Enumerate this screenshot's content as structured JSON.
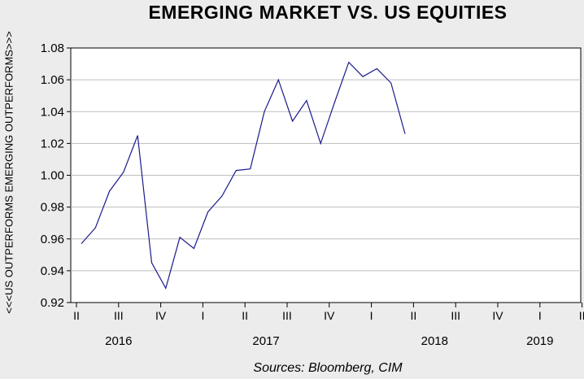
{
  "chart_data": {
    "type": "line",
    "title": "EMERGING MARKET VS. US EQUITIES",
    "ylabel": "<<<US OUTPERFORMS EMERGING OUTPERFORMS>>>",
    "xlabel": "",
    "source": "Sources:  Bloomberg, CIM",
    "ylim": [
      0.92,
      1.08
    ],
    "yticks": [
      "0.92",
      "0.94",
      "0.96",
      "0.98",
      "1.00",
      "1.02",
      "1.04",
      "1.06",
      "1.08"
    ],
    "grid": true,
    "line_color": "#1a1a8c",
    "quarter_labels": [
      "II",
      "III",
      "IV",
      "I",
      "II",
      "III",
      "IV",
      "I",
      "II",
      "III",
      "IV",
      "I",
      "II"
    ],
    "year_labels": [
      "2016",
      "2017",
      "2018",
      "2019"
    ],
    "series": [
      {
        "values": [
          0.957,
          0.967,
          0.99,
          1.002,
          1.025,
          0.945,
          0.929,
          0.961,
          0.954,
          0.977,
          0.987,
          1.003,
          1.004,
          1.04,
          1.06,
          1.034,
          1.047,
          1.02,
          1.046,
          1.071,
          1.062,
          1.067,
          1.058,
          1.026
        ]
      }
    ]
  }
}
